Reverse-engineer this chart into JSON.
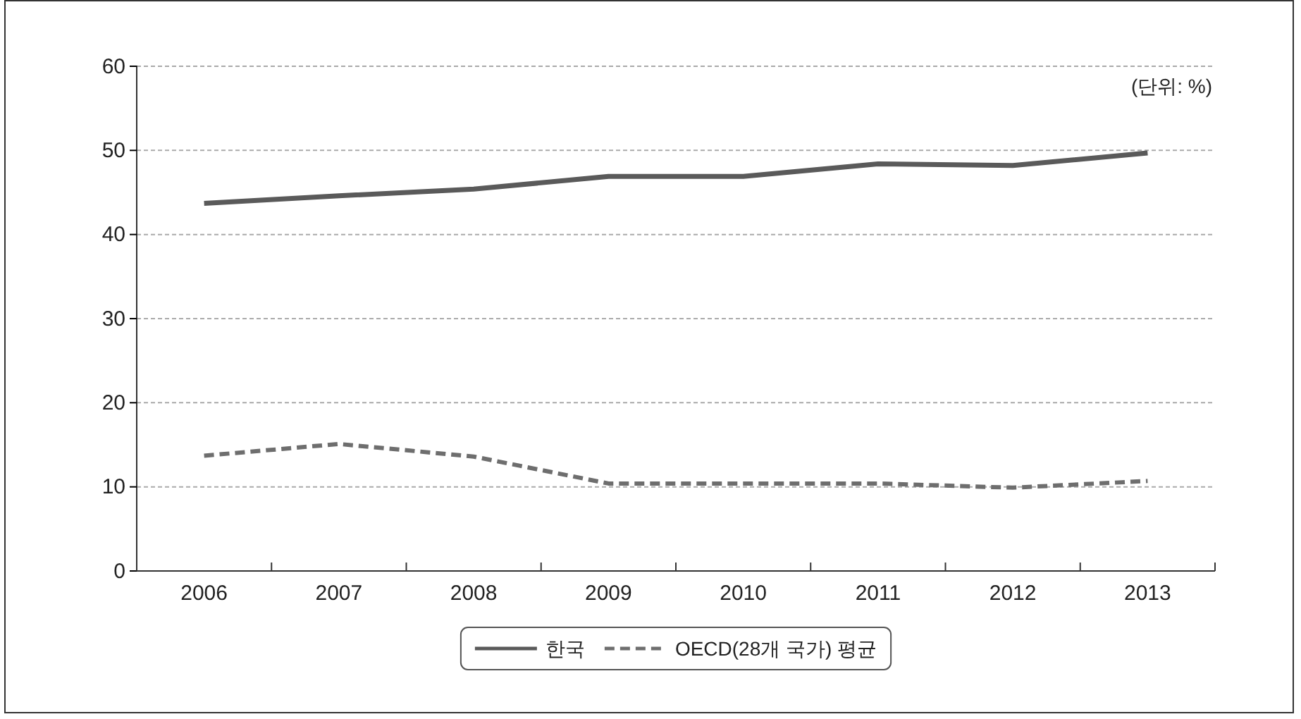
{
  "chart_data": {
    "type": "line",
    "categories": [
      "2006",
      "2007",
      "2008",
      "2009",
      "2010",
      "2011",
      "2012",
      "2013"
    ],
    "series": [
      {
        "name": "한국",
        "color": "#5a5a5a",
        "line_style": "solid",
        "values": [
          43.7,
          44.6,
          45.4,
          46.9,
          46.9,
          48.4,
          48.2,
          49.7
        ]
      },
      {
        "name": "OECD(28개 국가) 평균",
        "color": "#6e6e6e",
        "line_style": "dashed",
        "values": [
          13.7,
          15.1,
          13.6,
          10.4,
          10.4,
          10.4,
          9.9,
          10.7
        ]
      }
    ],
    "ylim": [
      0,
      60
    ],
    "yticks": [
      0,
      10,
      20,
      30,
      40,
      50,
      60
    ],
    "grid": "y",
    "legend": "bottom",
    "marker": "none",
    "annotations": [
      "(단위: %)"
    ]
  }
}
